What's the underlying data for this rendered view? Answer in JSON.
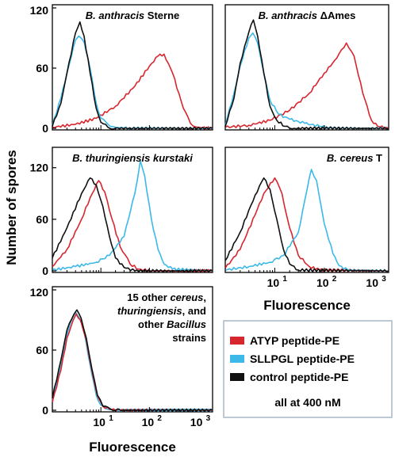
{
  "figure": {
    "ylabel": "Number of spores",
    "xlabel": "Fluorescence"
  },
  "legend": {
    "entries": [
      {
        "label": "ATYP peptide-PE",
        "color": "#d8262e"
      },
      {
        "label": "SLLPGL peptide-PE",
        "color": "#3cb9e8"
      },
      {
        "label": "control peptide-PE",
        "color": "#111111"
      }
    ],
    "note": "all at 400 nM",
    "border_color": "#a9b7c8"
  },
  "chart_data": [
    {
      "type": "line",
      "title_parts": [
        {
          "text": "B. anthracis",
          "italic": true
        },
        {
          "text": " Sterne",
          "italic": false
        }
      ],
      "title_align": "center",
      "xscale": "log",
      "xlim": [
        1,
        2000
      ],
      "xticks": [],
      "xticklabels": [],
      "ylim": [
        0,
        120
      ],
      "yticks": [
        0,
        60,
        120
      ],
      "series": [
        {
          "color": "#d8262e",
          "points": [
            [
              1,
              1
            ],
            [
              3,
              4
            ],
            [
              8,
              10
            ],
            [
              20,
              22
            ],
            [
              50,
              42
            ],
            [
              100,
              62
            ],
            [
              150,
              72
            ],
            [
              200,
              74
            ],
            [
              300,
              55
            ],
            [
              500,
              20
            ],
            [
              700,
              5
            ],
            [
              1000,
              1
            ],
            [
              2000,
              0
            ]
          ]
        },
        {
          "color": "#3cb9e8",
          "points": [
            [
              1,
              3
            ],
            [
              1.5,
              30
            ],
            [
              2,
              55
            ],
            [
              3,
              88
            ],
            [
              3.5,
              92
            ],
            [
              4.5,
              86
            ],
            [
              6,
              60
            ],
            [
              8,
              25
            ],
            [
              10,
              10
            ],
            [
              14,
              4
            ],
            [
              20,
              1
            ],
            [
              40,
              0
            ],
            [
              2000,
              0
            ]
          ]
        },
        {
          "color": "#111111",
          "points": [
            [
              1,
              2
            ],
            [
              1.5,
              25
            ],
            [
              2,
              55
            ],
            [
              3,
              95
            ],
            [
              3.7,
              106
            ],
            [
              4.5,
              92
            ],
            [
              6,
              55
            ],
            [
              8,
              20
            ],
            [
              10,
              6
            ],
            [
              14,
              1
            ],
            [
              20,
              0
            ],
            [
              2000,
              0
            ]
          ]
        }
      ]
    },
    {
      "type": "line",
      "title_parts": [
        {
          "text": "B. anthracis",
          "italic": true
        },
        {
          "text": " ΔAmes",
          "italic": false
        }
      ],
      "title_align": "center",
      "xscale": "log",
      "xlim": [
        1,
        2000
      ],
      "xticks": [],
      "xticklabels": [],
      "ylim": [
        0,
        120
      ],
      "yticks": [],
      "series": [
        {
          "color": "#d8262e",
          "points": [
            [
              1,
              1
            ],
            [
              3,
              3
            ],
            [
              8,
              8
            ],
            [
              20,
              18
            ],
            [
              50,
              35
            ],
            [
              100,
              55
            ],
            [
              180,
              70
            ],
            [
              280,
              85
            ],
            [
              400,
              72
            ],
            [
              600,
              35
            ],
            [
              900,
              8
            ],
            [
              1200,
              2
            ],
            [
              2000,
              0
            ]
          ]
        },
        {
          "color": "#3cb9e8",
          "points": [
            [
              1,
              3
            ],
            [
              1.5,
              35
            ],
            [
              2,
              62
            ],
            [
              3,
              90
            ],
            [
              3.6,
              95
            ],
            [
              4.5,
              85
            ],
            [
              6,
              55
            ],
            [
              8,
              28
            ],
            [
              12,
              14
            ],
            [
              20,
              9
            ],
            [
              40,
              5
            ],
            [
              80,
              2
            ],
            [
              150,
              0
            ],
            [
              2000,
              0
            ]
          ]
        },
        {
          "color": "#111111",
          "points": [
            [
              1,
              2
            ],
            [
              1.5,
              30
            ],
            [
              2,
              65
            ],
            [
              3,
              96
            ],
            [
              3.7,
              108
            ],
            [
              4.5,
              92
            ],
            [
              6,
              55
            ],
            [
              8,
              22
            ],
            [
              11,
              8
            ],
            [
              16,
              2
            ],
            [
              25,
              0
            ],
            [
              2000,
              0
            ]
          ]
        }
      ]
    },
    {
      "type": "line",
      "title_parts": [
        {
          "text": "B. thuringiensis kurstaki",
          "italic": true
        }
      ],
      "title_align": "center",
      "xscale": "log",
      "xlim": [
        1,
        2000
      ],
      "xticks": [],
      "xticklabels": [],
      "ylim": [
        0,
        140
      ],
      "yticks": [
        0,
        60,
        120
      ],
      "series": [
        {
          "color": "#d8262e",
          "points": [
            [
              1,
              5
            ],
            [
              2,
              25
            ],
            [
              4,
              60
            ],
            [
              6,
              85
            ],
            [
              9,
              105
            ],
            [
              12,
              92
            ],
            [
              17,
              60
            ],
            [
              25,
              28
            ],
            [
              40,
              8
            ],
            [
              60,
              2
            ],
            [
              100,
              0
            ],
            [
              2000,
              0
            ]
          ]
        },
        {
          "color": "#3cb9e8",
          "points": [
            [
              1,
              1
            ],
            [
              3,
              5
            ],
            [
              8,
              10
            ],
            [
              15,
              18
            ],
            [
              30,
              40
            ],
            [
              50,
              90
            ],
            [
              65,
              128
            ],
            [
              80,
              110
            ],
            [
              110,
              60
            ],
            [
              150,
              25
            ],
            [
              200,
              8
            ],
            [
              300,
              2
            ],
            [
              2000,
              0
            ]
          ]
        },
        {
          "color": "#111111",
          "points": [
            [
              1,
              15
            ],
            [
              2,
              50
            ],
            [
              4,
              90
            ],
            [
              6,
              108
            ],
            [
              8,
              100
            ],
            [
              11,
              75
            ],
            [
              15,
              40
            ],
            [
              20,
              15
            ],
            [
              30,
              4
            ],
            [
              50,
              0
            ],
            [
              2000,
              0
            ]
          ]
        }
      ]
    },
    {
      "type": "line",
      "title_parts": [
        {
          "text": "B. cereus",
          "italic": true
        },
        {
          "text": " T",
          "italic": false
        }
      ],
      "title_align": "right",
      "xscale": "log",
      "xlim": [
        1,
        2000
      ],
      "xticks": [
        10,
        100,
        1000
      ],
      "xticklabels": [
        "10",
        "10",
        "10"
      ],
      "xtickexp": [
        "1",
        "2",
        "3"
      ],
      "ylim": [
        0,
        140
      ],
      "yticks": [],
      "series": [
        {
          "color": "#d8262e",
          "points": [
            [
              1,
              3
            ],
            [
              2,
              25
            ],
            [
              4,
              65
            ],
            [
              6,
              90
            ],
            [
              10,
              108
            ],
            [
              14,
              90
            ],
            [
              20,
              50
            ],
            [
              30,
              18
            ],
            [
              50,
              5
            ],
            [
              80,
              1
            ],
            [
              2000,
              0
            ]
          ]
        },
        {
          "color": "#3cb9e8",
          "points": [
            [
              1,
              1
            ],
            [
              3,
              5
            ],
            [
              8,
              10
            ],
            [
              15,
              18
            ],
            [
              30,
              45
            ],
            [
              45,
              95
            ],
            [
              55,
              118
            ],
            [
              70,
              105
            ],
            [
              100,
              55
            ],
            [
              150,
              20
            ],
            [
              200,
              6
            ],
            [
              300,
              1
            ],
            [
              2000,
              0
            ]
          ]
        },
        {
          "color": "#111111",
          "points": [
            [
              1,
              12
            ],
            [
              2,
              45
            ],
            [
              4,
              88
            ],
            [
              6,
              108
            ],
            [
              8,
              95
            ],
            [
              11,
              60
            ],
            [
              15,
              25
            ],
            [
              20,
              8
            ],
            [
              30,
              1
            ],
            [
              2000,
              0
            ]
          ]
        }
      ]
    },
    {
      "type": "line",
      "title_lines": [
        [
          {
            "text": "15 other ",
            "italic": false
          },
          {
            "text": "cereus",
            "italic": true
          },
          {
            "text": ",",
            "italic": false
          }
        ],
        [
          {
            "text": "thuringiensis",
            "italic": true
          },
          {
            "text": ", and",
            "italic": false
          }
        ],
        [
          {
            "text": "other ",
            "italic": false
          },
          {
            "text": "Bacillus",
            "italic": true
          }
        ],
        [
          {
            "text": "strains",
            "italic": false
          }
        ]
      ],
      "title_align": "right",
      "xscale": "log",
      "xlim": [
        1,
        2000
      ],
      "xticks": [
        10,
        100,
        1000
      ],
      "xticklabels": [
        "10",
        "10",
        "10"
      ],
      "xtickexp": [
        "1",
        "2",
        "3"
      ],
      "ylim": [
        0,
        120
      ],
      "yticks": [
        0,
        60,
        120
      ],
      "series": [
        {
          "color": "#3cb9e8",
          "points": [
            [
              1,
              10
            ],
            [
              1.5,
              45
            ],
            [
              2,
              75
            ],
            [
              2.6,
              92
            ],
            [
              3,
              98
            ],
            [
              3.6,
              92
            ],
            [
              4.5,
              78
            ],
            [
              6,
              45
            ],
            [
              8,
              15
            ],
            [
              10,
              5
            ],
            [
              14,
              1
            ],
            [
              20,
              0
            ],
            [
              2000,
              0
            ]
          ]
        },
        {
          "color": "#d8262e",
          "points": [
            [
              1,
              8
            ],
            [
              1.5,
              40
            ],
            [
              2,
              72
            ],
            [
              2.7,
              90
            ],
            [
              3.1,
              96
            ],
            [
              3.8,
              90
            ],
            [
              5,
              70
            ],
            [
              6.5,
              40
            ],
            [
              8.5,
              14
            ],
            [
              11,
              4
            ],
            [
              15,
              1
            ],
            [
              25,
              0
            ],
            [
              2000,
              0
            ]
          ]
        },
        {
          "color": "#111111",
          "points": [
            [
              1,
              12
            ],
            [
              1.5,
              50
            ],
            [
              2,
              80
            ],
            [
              2.8,
              96
            ],
            [
              3.2,
              100
            ],
            [
              3.9,
              92
            ],
            [
              5,
              72
            ],
            [
              6.5,
              42
            ],
            [
              8.5,
              15
            ],
            [
              11,
              4
            ],
            [
              16,
              1
            ],
            [
              25,
              0
            ],
            [
              2000,
              0
            ]
          ]
        }
      ]
    }
  ]
}
